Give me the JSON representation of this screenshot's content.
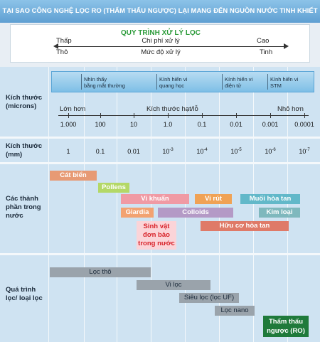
{
  "title": "TẠI SAO CÔNG NGHỆ LỌC RO (THẨM THẤU NGƯỢC) LẠI MANG ĐẾN NGUỒN NƯỚC TINH KHIẾT NHẤT ?",
  "process": {
    "title": "QUY TRÌNH XỬ LÝ LỌC",
    "left_top": "Thấp",
    "left_bottom": "Thô",
    "center_top": "Chi phí xử lý",
    "center_bottom": "Mức độ xử lý",
    "right_top": "Cao",
    "right_bottom": "Tinh"
  },
  "rows": {
    "size_microns": "Kích thước\n(microns)",
    "size_mm": "Kích thước\n(mm)",
    "components": "Các thành\nphần trong\nnước",
    "processes": "Quá trình\nlọc/ loại lọc"
  },
  "instruments": [
    "Nhìn thấy\nbằng mắt thường",
    "Kính hiển vi\nquang học",
    "Kính hiển vi\nđiện tử",
    "Kính hiển vi\nSTM"
  ],
  "size_axis": {
    "left": "Lớn hơn",
    "center": "Kích thước hạt/lỗ",
    "right": "Nhỏ hơn"
  },
  "microns": [
    "1.000",
    "100",
    "10",
    "1.0",
    "0.1",
    "0.01",
    "0.001",
    "0.0001"
  ],
  "mm": [
    {
      "base": "1",
      "exp": ""
    },
    {
      "base": "0.1",
      "exp": ""
    },
    {
      "base": "0.01",
      "exp": ""
    },
    {
      "base": "10",
      "exp": "-3"
    },
    {
      "base": "10",
      "exp": "-4"
    },
    {
      "base": "10",
      "exp": "-5"
    },
    {
      "base": "10",
      "exp": "-6"
    },
    {
      "base": "10",
      "exp": "-7"
    }
  ],
  "components": [
    {
      "label": "Cát biển",
      "color": "#e79a74"
    },
    {
      "label": "Pollens",
      "color": "#b4d867"
    },
    {
      "label": "Vi khuẩn",
      "color": "#f09aa4"
    },
    {
      "label": "Vi rút",
      "color": "#f0a255"
    },
    {
      "label": "Muối hòa tan",
      "color": "#62b8c9"
    },
    {
      "label": "Giardia",
      "color": "#f2a271"
    },
    {
      "label": "Colloids",
      "color": "#b49ac6"
    },
    {
      "label": "Kim loại",
      "color": "#7fb8bd"
    },
    {
      "label": "Sinh vật\nđơn bào\ntrong nước",
      "color": "#fbd4d8"
    },
    {
      "label": "Hữu cơ hòa tan",
      "color": "#df7a68"
    }
  ],
  "processes": [
    {
      "label": "Lọc thô",
      "color": "#9aa3ab"
    },
    {
      "label": "Vi lọc",
      "color": "#9aa3ab"
    },
    {
      "label": "Siêu lọc (lọc UF)",
      "color": "#9aa3ab"
    },
    {
      "label": "Lọc nano",
      "color": "#9aa3ab"
    },
    {
      "label": "Thẩm thấu\nngược (RO)",
      "color": "#1f7a3b"
    }
  ]
}
